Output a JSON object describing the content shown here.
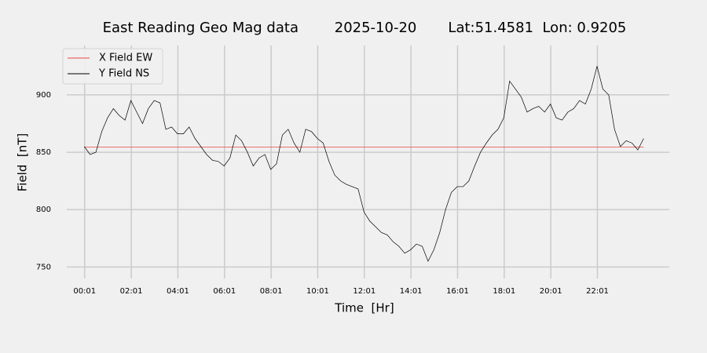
{
  "chart_data": {
    "type": "line",
    "title": "East Reading Geo Mag data        2025-10-20       Lat:51.4581  Lon: 0.9205",
    "x_label": "Time  [Hr]",
    "y_label": "Field  [nT]",
    "x": [
      0,
      0.25,
      0.5,
      0.75,
      1,
      1.25,
      1.5,
      1.75,
      2,
      2.25,
      2.5,
      2.75,
      3,
      3.25,
      3.5,
      3.75,
      4,
      4.25,
      4.5,
      4.75,
      5,
      5.25,
      5.5,
      5.75,
      6,
      6.25,
      6.5,
      6.75,
      7,
      7.25,
      7.5,
      7.75,
      8,
      8.25,
      8.5,
      8.75,
      9,
      9.25,
      9.5,
      9.75,
      10,
      10.25,
      10.5,
      10.75,
      11,
      11.25,
      11.5,
      11.75,
      12,
      12.25,
      12.5,
      12.75,
      13,
      13.25,
      13.5,
      13.75,
      14,
      14.25,
      14.5,
      14.75,
      15,
      15.25,
      15.5,
      15.75,
      16,
      16.25,
      16.5,
      16.75,
      17,
      17.25,
      17.5,
      17.75,
      18,
      18.25,
      18.5,
      18.75,
      19,
      19.25,
      19.5,
      19.75,
      20,
      20.25,
      20.5,
      20.75,
      21,
      21.25,
      21.5,
      21.75,
      22,
      22.25,
      22.5,
      22.75,
      23,
      23.25,
      23.5,
      23.75,
      24
    ],
    "series": [
      {
        "name": "X Field EW",
        "color": "#e8473f",
        "values": [
          854.5,
          854.5,
          854.5,
          854.5,
          854.5,
          854.5,
          854.5,
          854.5,
          854.5,
          854.5,
          854.5,
          854.5,
          854.5,
          854.5,
          854.5,
          854.5,
          854.5,
          854.5,
          854.5,
          854.5,
          854.5,
          854.5,
          854.5,
          854.5,
          854.5,
          854.5,
          854.5,
          854.5,
          854.5,
          854.5,
          854.5,
          854.5,
          854.5,
          854.5,
          854.5,
          854.5,
          854.5,
          854.5,
          854.5,
          854.5,
          854.5,
          854.5,
          854.5,
          854.5,
          854.5,
          854.5,
          854.5,
          854.5,
          854.5,
          854.5,
          854.5,
          854.5,
          854.5,
          854.5,
          854.5,
          854.5,
          854.5,
          854.5,
          854.5,
          854.5,
          854.5,
          854.5,
          854.5,
          854.5,
          854.5,
          854.5,
          854.5,
          854.5,
          854.5,
          854.5,
          854.5,
          854.5,
          854.5,
          854.5,
          854.5,
          854.5,
          854.5,
          854.5,
          854.5,
          854.5,
          854.5,
          854.5,
          854.5,
          854.5,
          854.5,
          854.5,
          854.5,
          854.5,
          854.5,
          854.5,
          854.5,
          854.5,
          854.5,
          854.5,
          854.5,
          854.5,
          854.5
        ]
      },
      {
        "name": "Y Field NS",
        "color": "#000000",
        "values": [
          855,
          848,
          850,
          868,
          880,
          888,
          882,
          878,
          895,
          885,
          875,
          888,
          895,
          893,
          870,
          872,
          866,
          866,
          872,
          862,
          855,
          848,
          843,
          842,
          838,
          845,
          865,
          860,
          850,
          838,
          845,
          848,
          835,
          840,
          865,
          870,
          858,
          850,
          870,
          868,
          862,
          858,
          842,
          830,
          825,
          822,
          820,
          818,
          798,
          790,
          785,
          780,
          778,
          772,
          768,
          762,
          765,
          770,
          768,
          755,
          765,
          780,
          800,
          815,
          820,
          820,
          825,
          838,
          850,
          858,
          865,
          870,
          880,
          912,
          905,
          898,
          885,
          888,
          890,
          885,
          892,
          880,
          878,
          885,
          888,
          895,
          892,
          905,
          925,
          905,
          900,
          870,
          855,
          860,
          858,
          852,
          862
        ]
      }
    ],
    "xlim": [
      -0.75,
      25.1
    ],
    "ylim": [
      740,
      943
    ],
    "xticks": [
      {
        "value": 0.0167,
        "label": "00:01"
      },
      {
        "value": 2.0167,
        "label": "02:01"
      },
      {
        "value": 4.0167,
        "label": "04:01"
      },
      {
        "value": 6.0167,
        "label": "06:01"
      },
      {
        "value": 8.0167,
        "label": "08:01"
      },
      {
        "value": 10.0167,
        "label": "10:01"
      },
      {
        "value": 12.0167,
        "label": "12:01"
      },
      {
        "value": 14.0167,
        "label": "14:01"
      },
      {
        "value": 16.0167,
        "label": "16:01"
      },
      {
        "value": 18.0167,
        "label": "18:01"
      },
      {
        "value": 20.0167,
        "label": "20:01"
      },
      {
        "value": 22.0167,
        "label": "22:01"
      }
    ],
    "yticks": [
      750,
      800,
      850,
      900
    ],
    "grid": true,
    "legend": "upper left"
  }
}
